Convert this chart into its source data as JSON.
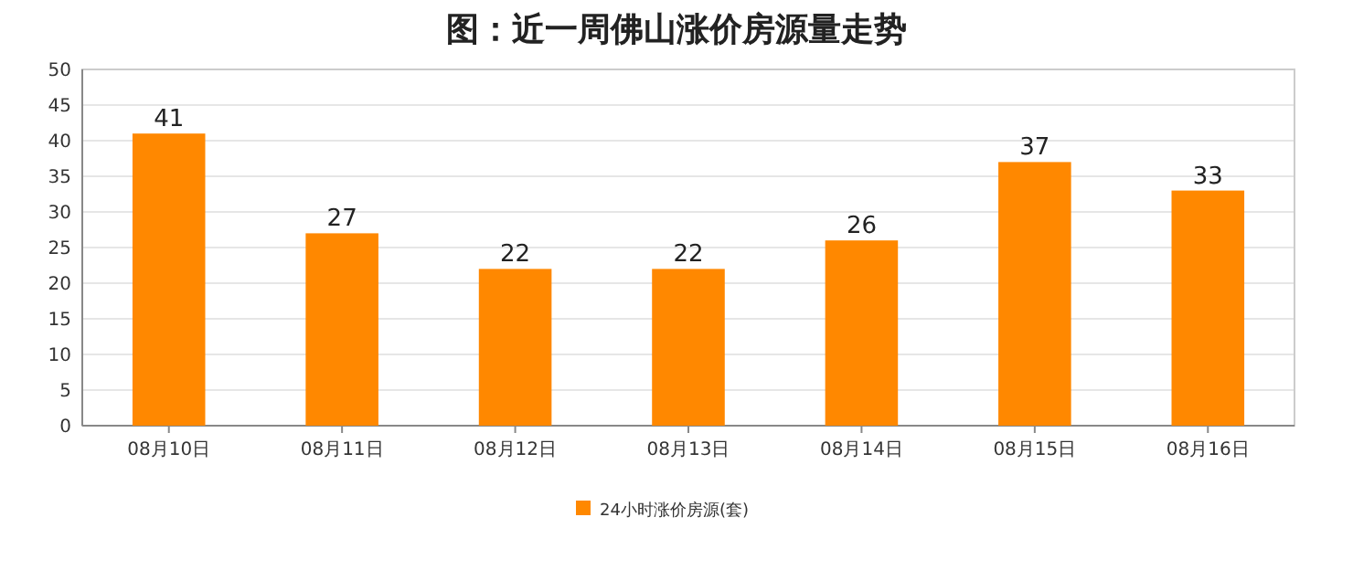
{
  "chart_data": {
    "type": "bar",
    "title": "图：近一周佛山涨价房源量走势",
    "categories": [
      "08月10日",
      "08月11日",
      "08月12日",
      "08月13日",
      "08月14日",
      "08月15日",
      "08月16日"
    ],
    "series": [
      {
        "name": "24小时涨价房源(套)",
        "color": "#ff8800",
        "values": [
          41,
          27,
          22,
          22,
          26,
          37,
          33
        ]
      }
    ],
    "ylim": [
      0,
      50
    ],
    "yticks": [
      0,
      5,
      10,
      15,
      20,
      25,
      30,
      35,
      40,
      45,
      50
    ],
    "grid": "y",
    "data_labels": true,
    "legend": "bottom"
  }
}
